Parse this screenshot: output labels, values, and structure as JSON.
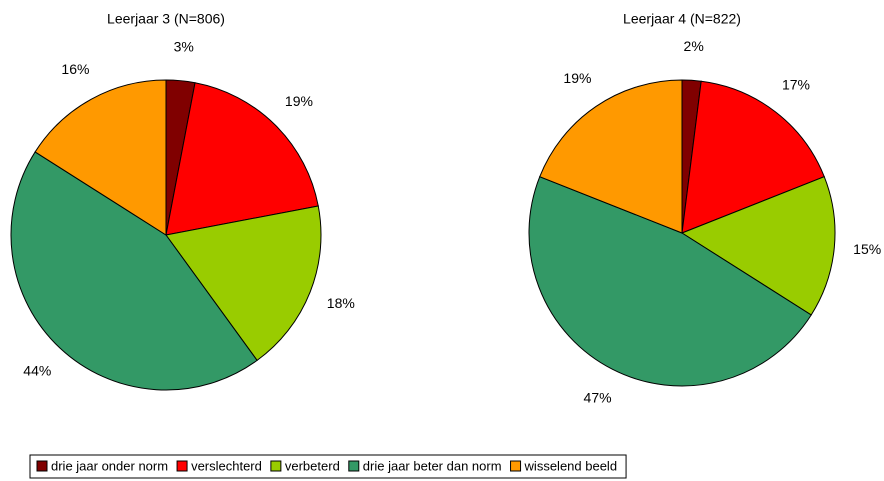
{
  "chart_data": [
    {
      "type": "pie",
      "title": "Leerjaar 3 (N=806)",
      "values": [
        3,
        19,
        18,
        44,
        16
      ],
      "value_labels": [
        "3%",
        "19%",
        "18%",
        "44%",
        "16%"
      ]
    },
    {
      "type": "pie",
      "title": "Leerjaar 4 (N=822)",
      "values": [
        2,
        17,
        15,
        47,
        19
      ],
      "value_labels": [
        "2%",
        "17%",
        "15%",
        "47%",
        "19%"
      ]
    }
  ],
  "legend": {
    "names": [
      "drie jaar onder norm",
      "verslechterd",
      "verbeterd",
      "drie jaar beter dan norm",
      "wisselend beeld"
    ],
    "colors": [
      "#800000",
      "#ff0000",
      "#99cc00",
      "#339966",
      "#ff9900"
    ],
    "position": "bottom"
  }
}
